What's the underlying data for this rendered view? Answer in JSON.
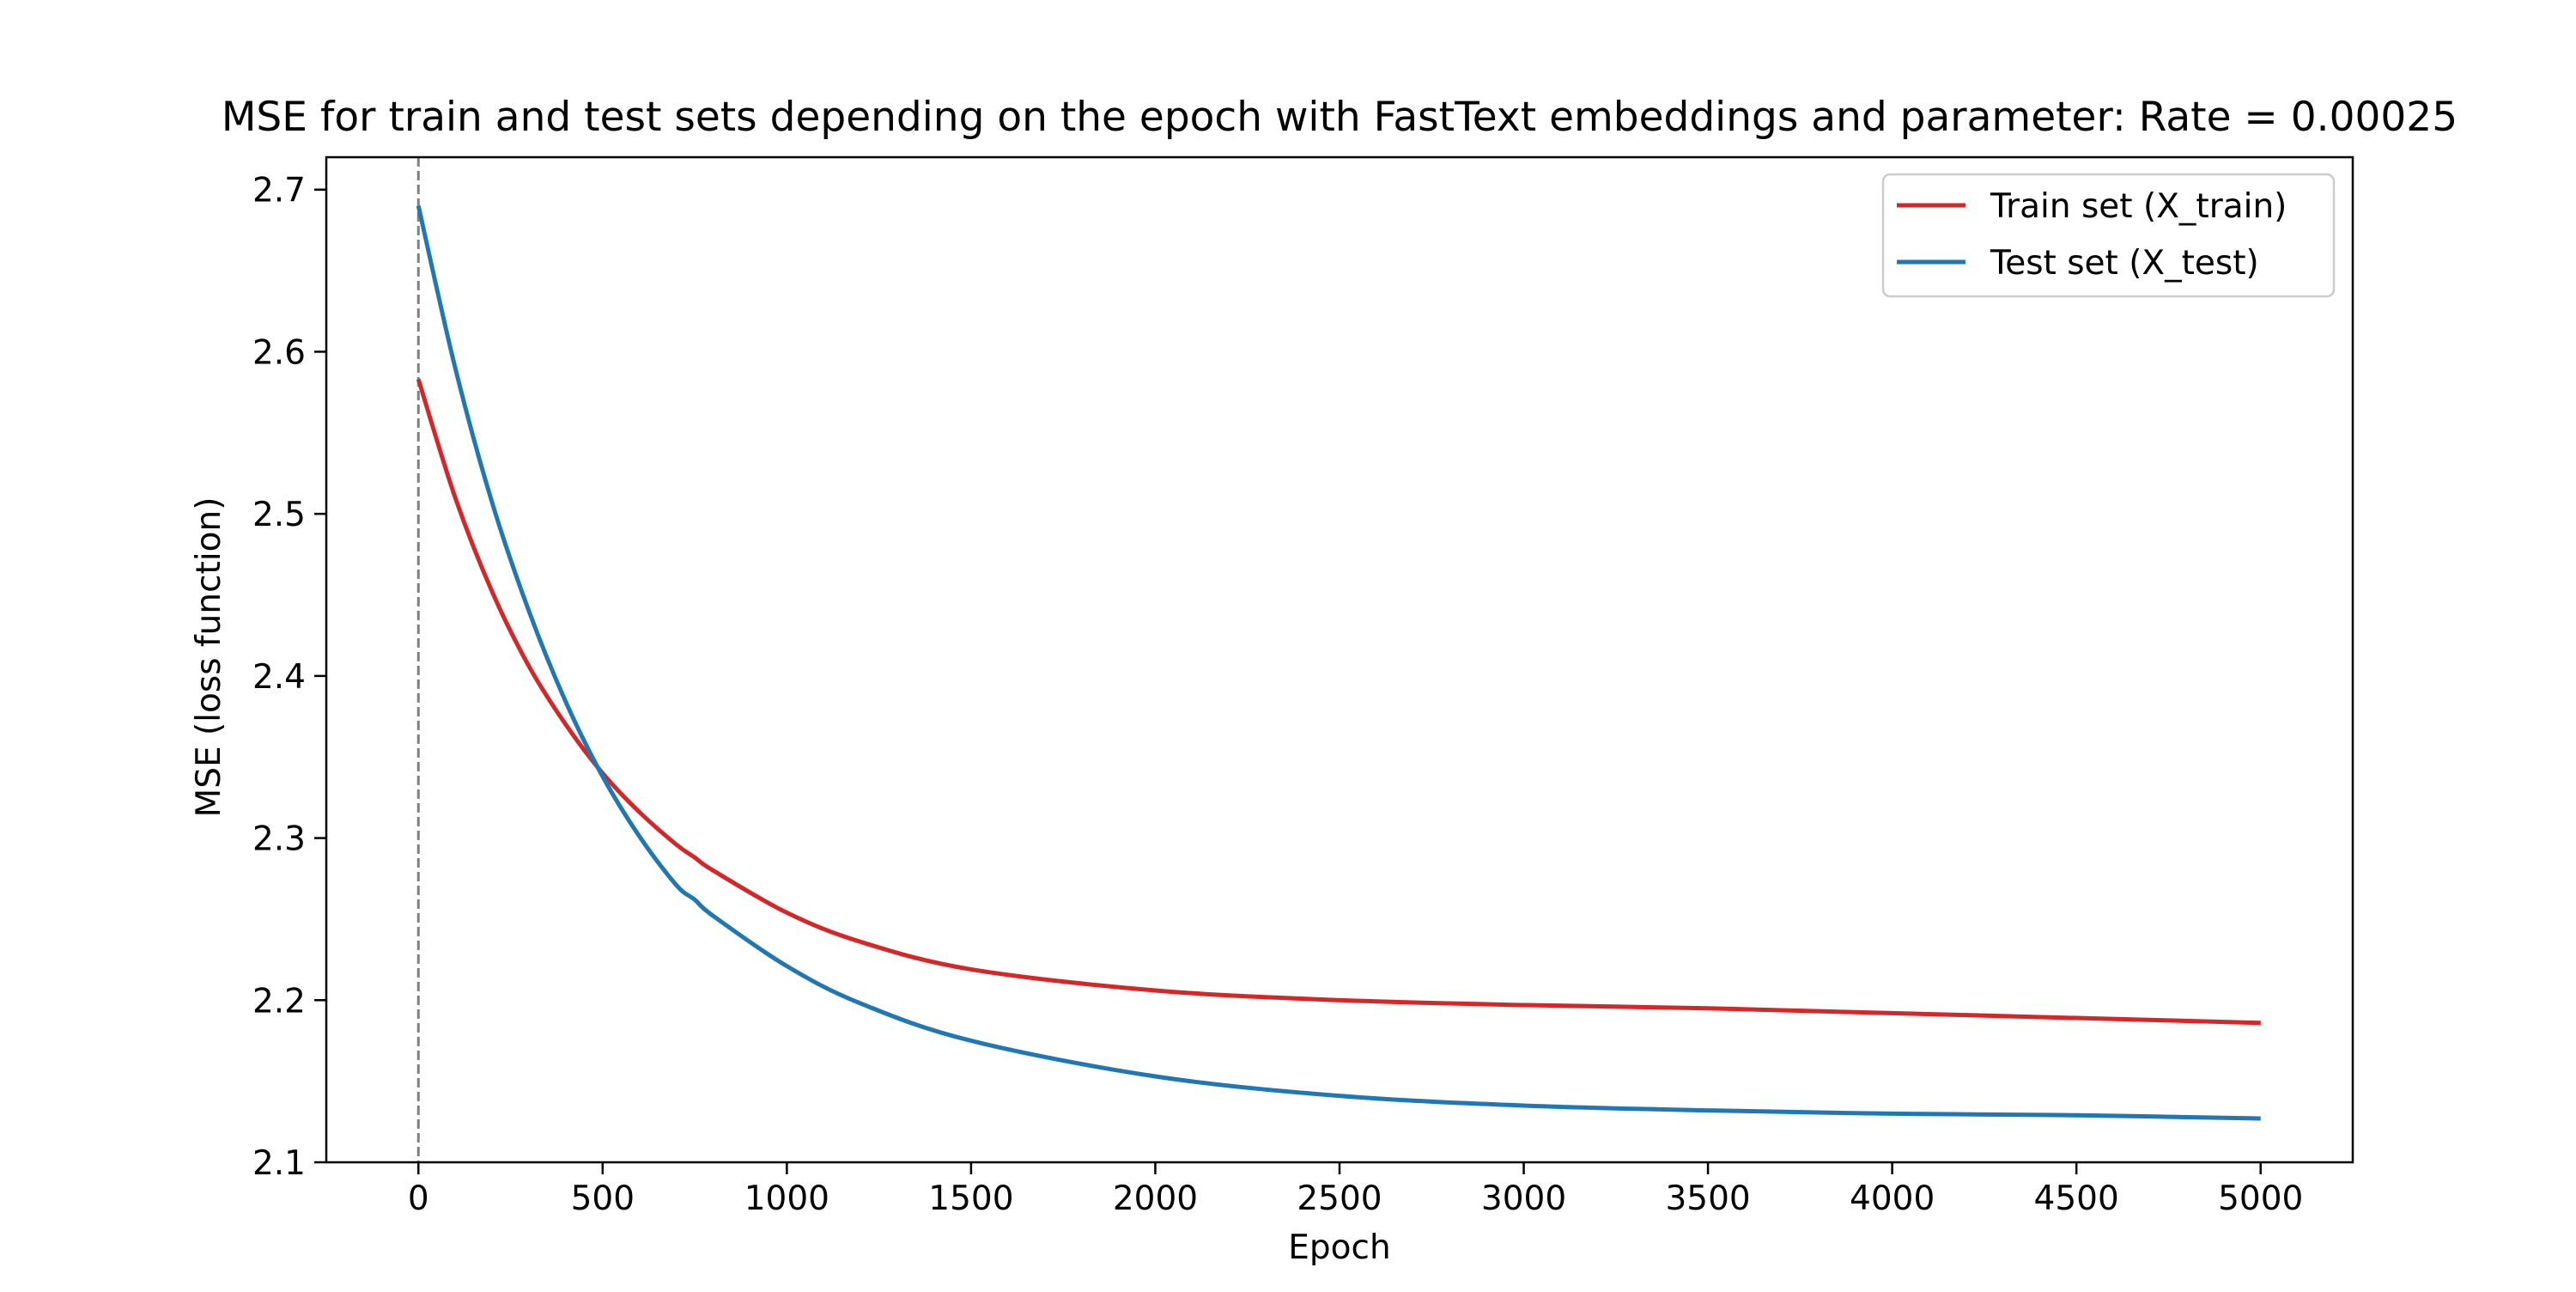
{
  "chart_data": {
    "type": "line",
    "title": "MSE for train and test sets depending on the epoch with FastText embeddings and parameter: Rate = 0.00025",
    "xlabel": "Epoch",
    "ylabel": "MSE (loss function)",
    "xlim": [
      -250,
      5250
    ],
    "ylim": [
      2.1,
      2.72
    ],
    "xticks": [
      0,
      500,
      1000,
      1500,
      2000,
      2500,
      3000,
      3500,
      4000,
      4500,
      5000
    ],
    "xtick_labels": [
      "0",
      "500",
      "1000",
      "1500",
      "2000",
      "2500",
      "3000",
      "3500",
      "4000",
      "4500",
      "5000"
    ],
    "yticks": [
      2.1,
      2.2,
      2.3,
      2.4,
      2.5,
      2.6,
      2.7
    ],
    "ytick_labels": [
      "2.1",
      "2.2",
      "2.3",
      "2.4",
      "2.5",
      "2.6",
      "2.7"
    ],
    "grid": false,
    "legend_position": "top-right",
    "vline": {
      "x": 0,
      "color": "#808080",
      "style": "dashed"
    },
    "x": [
      0,
      100,
      200,
      300,
      400,
      500,
      600,
      700,
      750,
      800,
      1000,
      1200,
      1500,
      2000,
      2500,
      3000,
      3500,
      4000,
      4500,
      5000
    ],
    "series": [
      {
        "name": "Train set (X_train)",
        "color": "#d62728",
        "values": [
          2.583,
          2.51,
          2.452,
          2.406,
          2.37,
          2.34,
          2.316,
          2.296,
          2.288,
          2.28,
          2.254,
          2.236,
          2.219,
          2.206,
          2.2,
          2.197,
          2.195,
          2.192,
          2.189,
          2.186
        ]
      },
      {
        "name": "Test set (X_test)",
        "color": "#1f77b4",
        "values": [
          2.69,
          2.59,
          2.507,
          2.44,
          2.384,
          2.338,
          2.301,
          2.271,
          2.262,
          2.252,
          2.221,
          2.198,
          2.175,
          2.153,
          2.141,
          2.135,
          2.132,
          2.13,
          2.129,
          2.127
        ]
      }
    ]
  }
}
